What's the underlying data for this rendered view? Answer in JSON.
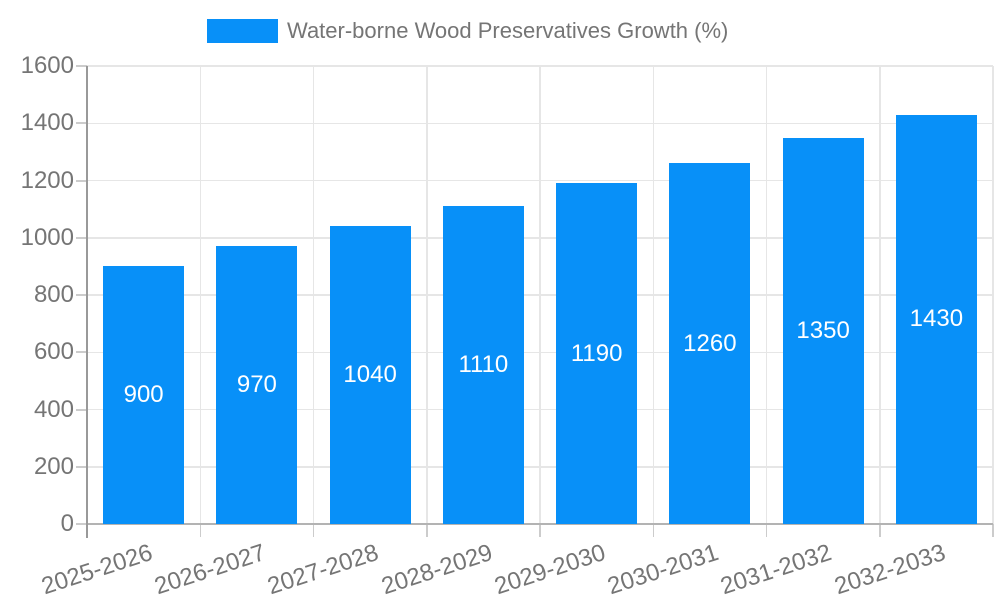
{
  "legend": {
    "label": "Water-borne Wood Preservatives Growth (%)"
  },
  "colors": {
    "bar": "#0890f8",
    "bar_label_text": "#ffffff",
    "axis_text": "#757575",
    "grid_line": "#e6e6e6",
    "axis_line": "#999999",
    "baseline": "#b3b3b3",
    "tick": "#cccccc",
    "background": "#ffffff"
  },
  "chart_data": {
    "type": "bar",
    "title": "Water-borne Wood Preservatives Growth (%)",
    "categories": [
      "2025-2026",
      "2026-2027",
      "2027-2028",
      "2028-2029",
      "2029-2030",
      "2030-2031",
      "2031-2032",
      "2032-2033"
    ],
    "values": [
      900,
      970,
      1040,
      1110,
      1190,
      1260,
      1350,
      1430
    ],
    "series": [
      {
        "name": "Water-borne Wood Preservatives Growth (%)",
        "values": [
          900,
          970,
          1040,
          1110,
          1190,
          1260,
          1350,
          1430
        ]
      }
    ],
    "xlabel": "",
    "ylabel": "",
    "ylim": [
      0,
      1600
    ],
    "ytick_step": 200,
    "yticks": [
      0,
      200,
      400,
      600,
      800,
      1000,
      1200,
      1400,
      1600
    ],
    "grid": true,
    "legend_position": "top-center",
    "bar_value_labels": "centered-inside-white",
    "x_label_rotation_deg": -18
  }
}
